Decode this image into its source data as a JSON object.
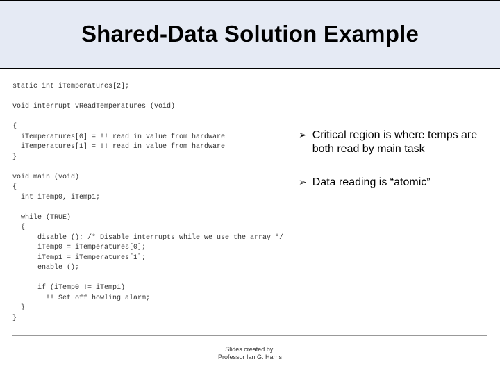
{
  "colors": {
    "header_bg": "#e5eaf4",
    "header_border": "#000000",
    "background": "#ffffff",
    "text": "#000000",
    "code_text": "#333333",
    "footer_rule": "#999999"
  },
  "title": "Shared-Data Solution Example",
  "code": "static int iTemperatures[2];\n\nvoid interrupt vReadTemperatures (void)\n\n{\n  iTemperatures[0] = !! read in value from hardware\n  iTemperatures[1] = !! read in value from hardware\n}\n\nvoid main (void)\n{\n  int iTemp0, iTemp1;\n\n  while (TRUE)\n  {\n      disable (); /* Disable interrupts while we use the array */\n      iTemp0 = iTemperatures[0];\n      iTemp1 = iTemperatures[1];\n      enable ();\n\n      if (iTemp0 != iTemp1)\n        !! Set off howling alarm;\n  }\n}",
  "bullets": [
    "Critical region is where temps are both read by main task",
    "Data reading is “atomic”"
  ],
  "bullet_marker": "➢",
  "footer_line1": "Slides created by:",
  "footer_line2": "Professor Ian G. Harris"
}
